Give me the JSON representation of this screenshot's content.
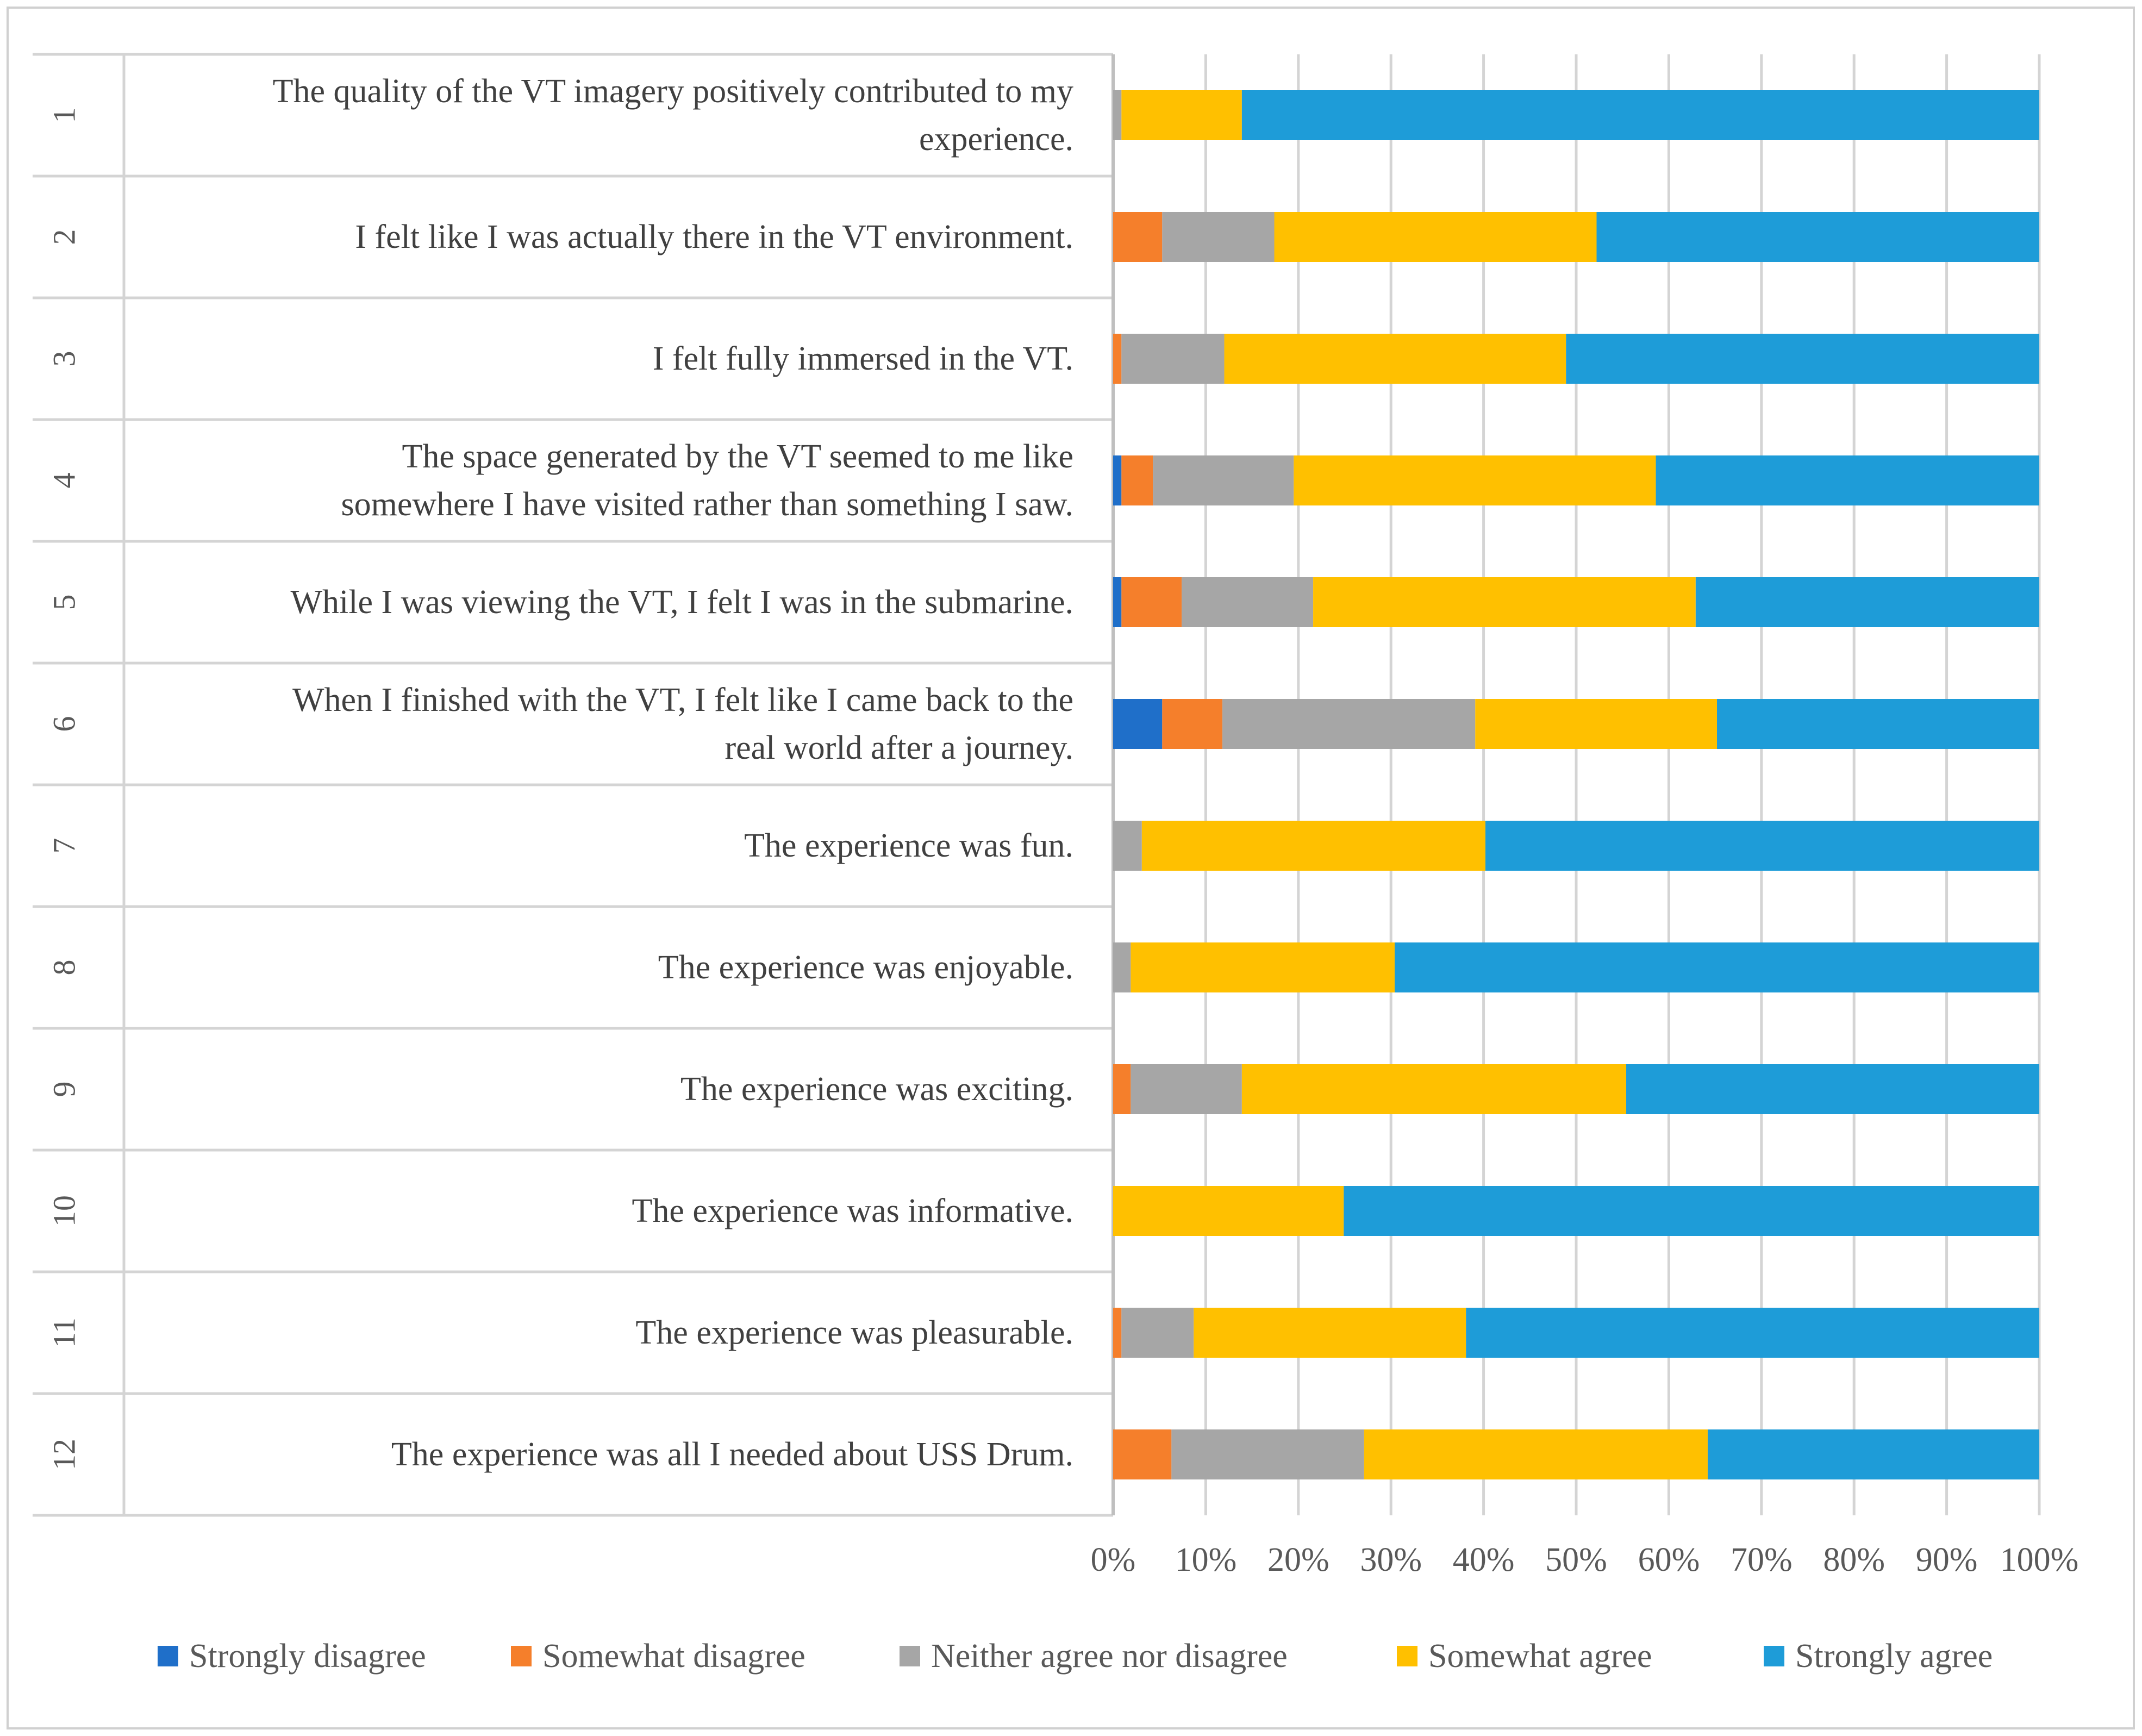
{
  "chart_data": {
    "type": "bar",
    "orientation": "horizontal",
    "stacked": true,
    "normalized_percent": true,
    "title": "",
    "xlabel": "",
    "ylabel": "",
    "xlim": [
      0,
      100
    ],
    "x_ticks": [
      "0%",
      "10%",
      "20%",
      "30%",
      "40%",
      "50%",
      "60%",
      "70%",
      "80%",
      "90%",
      "100%"
    ],
    "grid": "vertical",
    "legend_position": "bottom",
    "items": [
      {
        "number": "1",
        "line1": "The quality of the VT imagery positively contributed to my",
        "line2": "experience."
      },
      {
        "number": "2",
        "line1": "I felt like I was actually there in the VT environment.",
        "line2": ""
      },
      {
        "number": "3",
        "line1": "I felt fully immersed in the VT.",
        "line2": ""
      },
      {
        "number": "4",
        "line1": "The space generated by the VT seemed to me like",
        "line2": "somewhere I have visited rather than something I saw."
      },
      {
        "number": "5",
        "line1": "While I was viewing the VT, I felt I was in the submarine.",
        "line2": ""
      },
      {
        "number": "6",
        "line1": "When I finished with the VT, I felt like I came back to the",
        "line2": "real world after a journey."
      },
      {
        "number": "7",
        "line1": "The experience was fun.",
        "line2": ""
      },
      {
        "number": "8",
        "line1": "The experience was enjoyable.",
        "line2": ""
      },
      {
        "number": "9",
        "line1": "The experience was exciting.",
        "line2": ""
      },
      {
        "number": "10",
        "line1": "The experience was informative.",
        "line2": ""
      },
      {
        "number": "11",
        "line1": "The experience was pleasurable.",
        "line2": ""
      },
      {
        "number": "12",
        "line1": "The experience was all I needed about USS Drum.",
        "line2": ""
      }
    ],
    "series": [
      {
        "name": "Strongly disagree",
        "color": "#1f6fc9",
        "values": [
          0,
          0,
          0,
          0.9,
          0.9,
          5.3,
          0,
          0,
          0,
          0,
          0,
          0
        ]
      },
      {
        "name": "Somewhat disagree",
        "color": "#f57f2b",
        "values": [
          0,
          5.3,
          0.9,
          3.4,
          6.5,
          6.5,
          0,
          0,
          1.9,
          0,
          0.9,
          6.3
        ]
      },
      {
        "name": "Neither agree nor disagree",
        "color": "#a6a6a6",
        "values": [
          0.9,
          12.1,
          11.1,
          15.2,
          14.2,
          27.3,
          3.1,
          1.9,
          12.0,
          0,
          7.8,
          20.8
        ]
      },
      {
        "name": "Somewhat agree",
        "color": "#ffc000",
        "values": [
          13.0,
          34.8,
          36.9,
          39.1,
          41.3,
          26.1,
          37.1,
          28.5,
          41.5,
          24.9,
          29.4,
          37.1
        ]
      },
      {
        "name": "Strongly agree",
        "color": "#1e9cd8",
        "values": [
          86.1,
          47.8,
          51.1,
          41.4,
          37.1,
          34.8,
          59.8,
          69.6,
          44.6,
          75.1,
          61.9,
          35.8
        ]
      }
    ]
  }
}
